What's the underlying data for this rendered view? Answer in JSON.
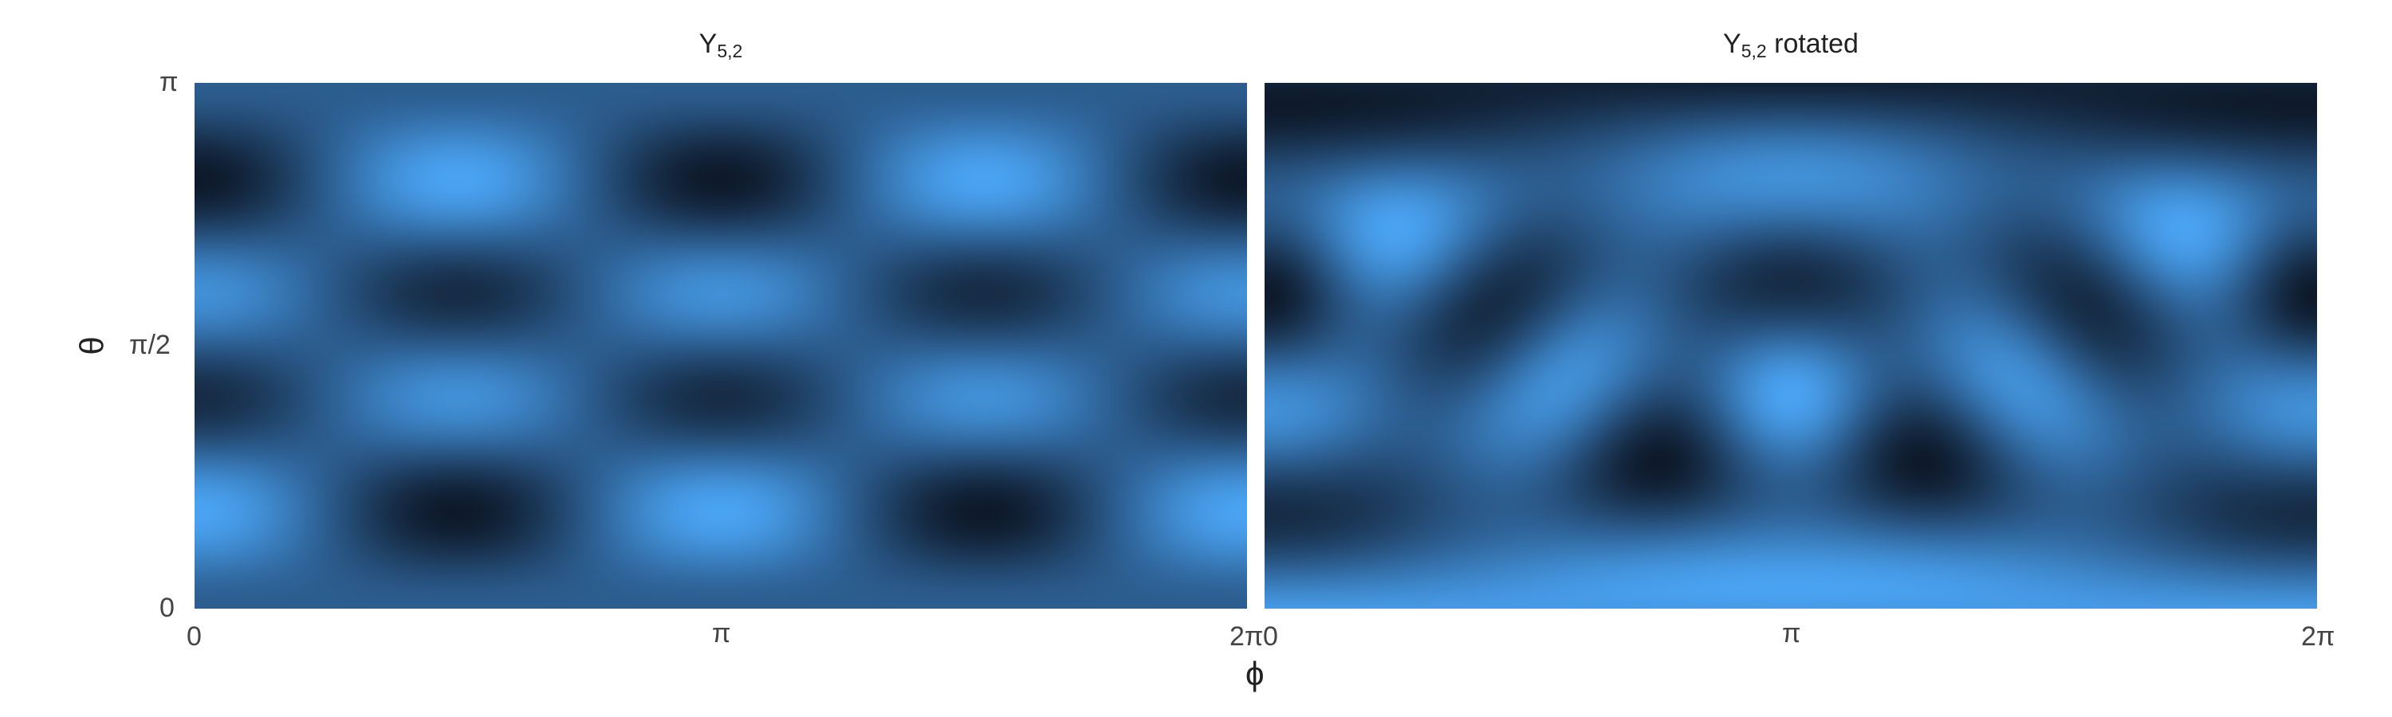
{
  "colors": {
    "low": "#0e1a2b",
    "mid": "#2c5d8f",
    "high": "#4aa3f2"
  },
  "chart_data": [
    {
      "type": "heatmap",
      "title_main": "Y",
      "title_sub": "5,2",
      "title_suffix": "",
      "xlabel": "ϕ",
      "ylabel": "θ",
      "x_domain": [
        0,
        6.283185
      ],
      "y_domain": [
        0,
        3.141593
      ],
      "x_ticks": [
        {
          "value": 0,
          "label": "0"
        },
        {
          "value": 3.141593,
          "label": "π"
        },
        {
          "value": 6.283185,
          "label": "2π"
        }
      ],
      "y_ticks": [
        {
          "value": 0,
          "label": "0"
        },
        {
          "value": 1.570796,
          "label": "π/2"
        },
        {
          "value": 3.141593,
          "label": "π"
        }
      ],
      "function": "Re(Y_5^2(θ, ϕ))",
      "rotation_deg": 0,
      "colormap": [
        "#0e1a2b",
        "#2c5d8f",
        "#4aa3f2"
      ]
    },
    {
      "type": "heatmap",
      "title_main": "Y",
      "title_sub": "5,2",
      "title_suffix": " rotated",
      "xlabel": "ϕ",
      "ylabel": "",
      "x_domain": [
        0,
        6.283185
      ],
      "y_domain": [
        0,
        3.141593
      ],
      "x_ticks": [
        {
          "value": 0,
          "label": "0"
        },
        {
          "value": 3.141593,
          "label": "π"
        },
        {
          "value": 6.283185,
          "label": "2π"
        }
      ],
      "y_ticks": [],
      "function": "Re(Y_5^2(θ, ϕ)) after rotation",
      "rotation_deg": 40,
      "colormap": [
        "#0e1a2b",
        "#2c5d8f",
        "#4aa3f2"
      ]
    }
  ]
}
